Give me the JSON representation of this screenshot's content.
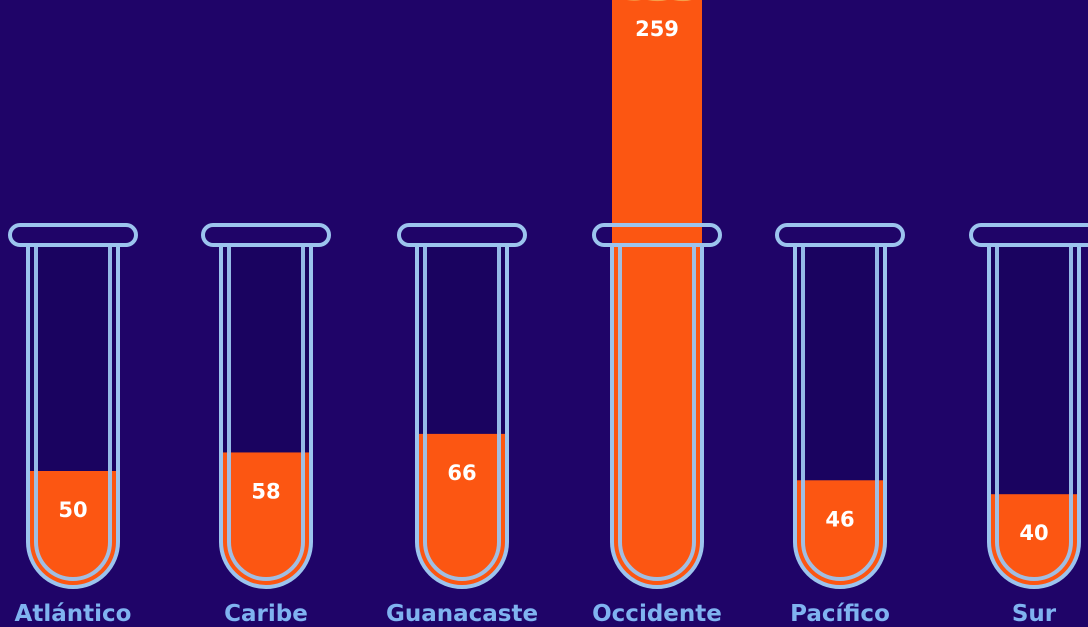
{
  "chart_data": {
    "type": "bar",
    "title": "",
    "xlabel": "",
    "ylabel": "",
    "categories": [
      "Atlántico",
      "Caribe",
      "Guanacaste",
      "Occidente",
      "Pacífico",
      "Sur"
    ],
    "values": [
      50,
      58,
      66,
      259,
      46,
      40
    ],
    "grid": false,
    "legend": "none",
    "colors": {
      "background": "#1f0468",
      "fill": "#fc5612",
      "tube": "#9cc4ee",
      "label": "#7fb3f0",
      "value_text": "#ffffff",
      "foam": "#ffffff"
    }
  }
}
